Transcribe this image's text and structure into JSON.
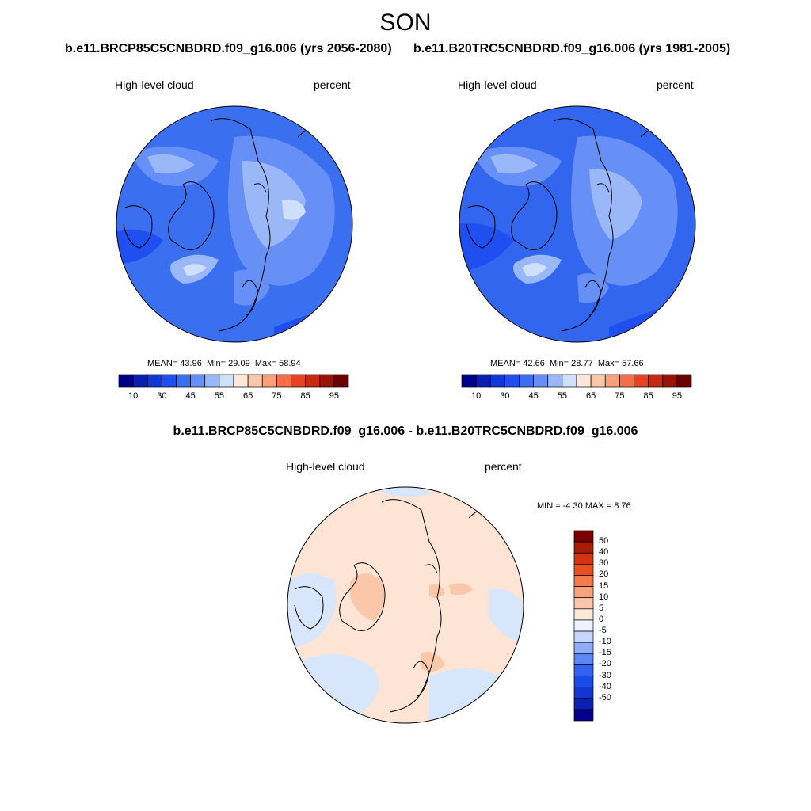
{
  "season_title": "SON",
  "panels": [
    {
      "case_title": "b.e11.BRCP85C5CNBDRD.f09_g16.006 (yrs 2056-2080)",
      "variable_label": "High-level cloud",
      "units_label": "percent",
      "stats": {
        "mean_label": "MEAN=",
        "mean": "43.96",
        "min_label": "Min=",
        "min": "29.09",
        "max_label": "Max=",
        "max": "58.94"
      },
      "background_color": "#3a6ff0"
    },
    {
      "case_title": "b.e11.B20TRC5CNBDRD.f09_g16.006 (yrs 1981-2005)",
      "variable_label": "High-level cloud",
      "units_label": "percent",
      "stats": {
        "mean_label": "MEAN=",
        "mean": "42.66",
        "min_label": "Min=",
        "min": "28.77",
        "max_label": "Max=",
        "max": "57.66"
      },
      "background_color": "#3366ee"
    },
    {
      "case_title": "b.e11.BRCP85C5CNBDRD.f09_g16.006 - b.e11.B20TRC5CNBDRD.f09_g16.006",
      "variable_label": "High-level cloud",
      "units_label": "percent",
      "stats": {
        "min_label": "MIN =",
        "min": "-4.30",
        "max_label": "MAX =",
        "max": "8.76"
      },
      "background_color": "#fde4d4"
    }
  ],
  "abs_colorbar": {
    "colors": [
      "#00008b",
      "#0a1fb0",
      "#1238d4",
      "#1f4ff0",
      "#3a6ff0",
      "#6690f5",
      "#9ab7f8",
      "#cfe0fb",
      "#fde8d8",
      "#fbc7aa",
      "#f9a07a",
      "#f46e47",
      "#e84320",
      "#c72a10",
      "#9a1307",
      "#6b0000"
    ],
    "tick_labels": [
      "10",
      "30",
      "45",
      "55",
      "65",
      "75",
      "85",
      "95"
    ]
  },
  "diff_colorbar": {
    "colors": [
      "#00008b",
      "#0a20b0",
      "#1236d2",
      "#1a4ae8",
      "#3163f0",
      "#5b86f4",
      "#8eacf7",
      "#c5d8fb",
      "#eef3ff",
      "#fde8d8",
      "#fbc7aa",
      "#f8a37d",
      "#f47a50",
      "#ea4f22",
      "#d23311",
      "#a81c06",
      "#7a0000"
    ],
    "tick_labels": [
      "50",
      "40",
      "30",
      "20",
      "15",
      "10",
      "5",
      "0",
      "-5",
      "-10",
      "-15",
      "-20",
      "-30",
      "-40",
      "-50"
    ]
  }
}
